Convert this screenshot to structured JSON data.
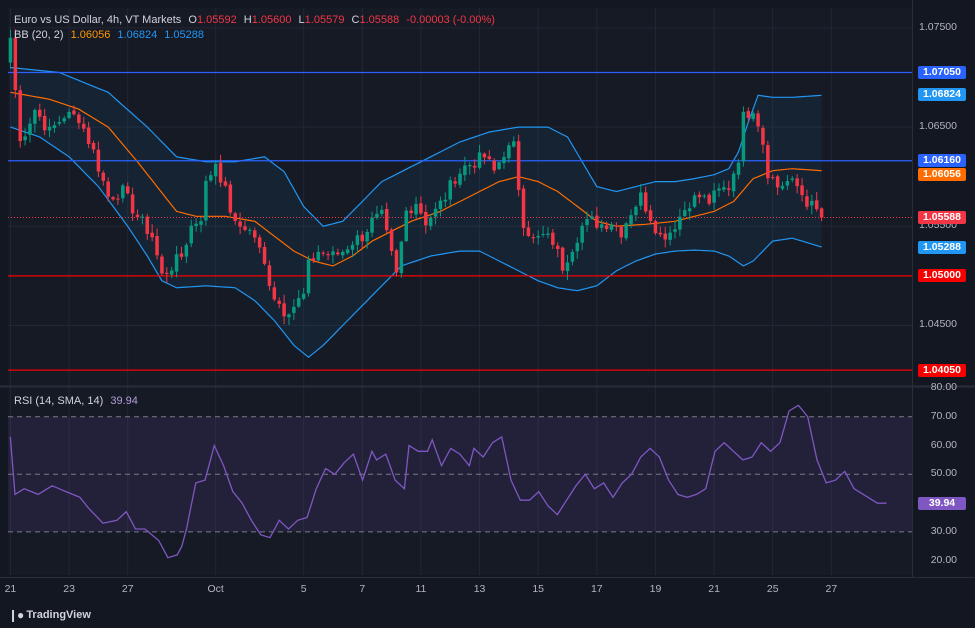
{
  "header": {
    "symbol": "Euro vs US Dollar, 4h, VT Markets",
    "o_label": "O",
    "o": "1.05592",
    "h_label": "H",
    "h": "1.05600",
    "l_label": "L",
    "l": "1.05579",
    "c_label": "C",
    "c": "1.05588",
    "change": "-0.00003 (-0.00%)"
  },
  "bb_legend": {
    "label": "BB (20, 2)",
    "basis": "1.06056",
    "upper": "1.06824",
    "lower": "1.05288"
  },
  "rsi_legend": {
    "label": "RSI (14, SMA, 14)",
    "value": "39.94"
  },
  "price_labels": [
    {
      "text": "1.07050",
      "color": "#2962ff",
      "value": 1.0705
    },
    {
      "text": "1.06824",
      "color": "#2196f3",
      "value": 1.06824
    },
    {
      "text": "1.06160",
      "color": "#2962ff",
      "value": 1.0616
    },
    {
      "text": "1.06056",
      "color": "#ff6d00",
      "value": 1.06056
    },
    {
      "text": "1.05588",
      "color": "#f23645",
      "value": 1.05588
    },
    {
      "text": "1.05288",
      "color": "#2196f3",
      "value": 1.05288
    },
    {
      "text": "1.05000",
      "color": "#f70000",
      "value": 1.05
    },
    {
      "text": "1.04050",
      "color": "#f70000",
      "value": 1.0405
    }
  ],
  "rsi_label": {
    "text": "39.94",
    "color": "#7e57c2"
  },
  "branding": "TradingView",
  "chart_data": {
    "type": "candlestick",
    "price_axis": {
      "ylim": [
        1.039,
        1.077
      ],
      "ticks": [
        "1.07500",
        "1.06500",
        "1.05500",
        "1.04500"
      ],
      "tick_values": [
        1.075,
        1.065,
        1.055,
        1.045
      ]
    },
    "rsi_axis": {
      "ylim": [
        15,
        80
      ],
      "ticks": [
        "80.00",
        "70.00",
        "60.00",
        "50.00",
        "30.00",
        "20.00"
      ],
      "tick_values": [
        80,
        70,
        60,
        50,
        30,
        20
      ],
      "dashed_levels": [
        70,
        50,
        30
      ]
    },
    "date_ticks": [
      {
        "label": "21",
        "bar": 0
      },
      {
        "label": "23",
        "bar": 12
      },
      {
        "label": "27",
        "bar": 24
      },
      {
        "label": "Oct",
        "bar": 42
      },
      {
        "label": "5",
        "bar": 60
      },
      {
        "label": "7",
        "bar": 72
      },
      {
        "label": "11",
        "bar": 84
      },
      {
        "label": "13",
        "bar": 96
      },
      {
        "label": "15",
        "bar": 108
      },
      {
        "label": "17",
        "bar": 120
      },
      {
        "label": "19",
        "bar": 132
      },
      {
        "label": "21",
        "bar": 144
      },
      {
        "label": "25",
        "bar": 156
      },
      {
        "label": "27",
        "bar": 168
      }
    ],
    "horizontal_lines": [
      {
        "value": 1.0705,
        "color": "#2962ff"
      },
      {
        "value": 1.0616,
        "color": "#2962ff"
      },
      {
        "value": 1.05,
        "color": "#f70000"
      },
      {
        "value": 1.0405,
        "color": "#f70000"
      }
    ],
    "last_price": 1.05588,
    "close_anchors": [
      [
        0,
        1.074
      ],
      [
        2,
        1.0635
      ],
      [
        5,
        1.0668
      ],
      [
        8,
        1.0645
      ],
      [
        11,
        1.0662
      ],
      [
        14,
        1.066
      ],
      [
        17,
        1.0625
      ],
      [
        20,
        1.058
      ],
      [
        23,
        1.0585
      ],
      [
        26,
        1.056
      ],
      [
        29,
        1.054
      ],
      [
        31,
        1.05
      ],
      [
        33,
        1.051
      ],
      [
        35,
        1.052
      ],
      [
        37,
        1.055
      ],
      [
        39,
        1.056
      ],
      [
        40,
        1.0592
      ],
      [
        42,
        1.0615
      ],
      [
        44,
        1.0585
      ],
      [
        46,
        1.055
      ],
      [
        48,
        1.055
      ],
      [
        50,
        1.054
      ],
      [
        52,
        1.051
      ],
      [
        54,
        1.048
      ],
      [
        56,
        1.0465
      ],
      [
        58,
        1.047
      ],
      [
        60,
        1.048
      ],
      [
        61,
        1.051
      ],
      [
        63,
        1.0525
      ],
      [
        66,
        1.052
      ],
      [
        68,
        1.0525
      ],
      [
        70,
        1.0535
      ],
      [
        72,
        1.054
      ],
      [
        74,
        1.0555
      ],
      [
        76,
        1.056
      ],
      [
        78,
        1.052
      ],
      [
        79,
        1.05
      ],
      [
        81,
        1.0565
      ],
      [
        83,
        1.0575
      ],
      [
        85,
        1.0555
      ],
      [
        87,
        1.0565
      ],
      [
        89,
        1.058
      ],
      [
        91,
        1.06
      ],
      [
        93,
        1.061
      ],
      [
        95,
        1.0615
      ],
      [
        97,
        1.062
      ],
      [
        99,
        1.0605
      ],
      [
        101,
        1.0625
      ],
      [
        103,
        1.063
      ],
      [
        104,
        1.059
      ],
      [
        105,
        1.0555
      ],
      [
        107,
        1.0535
      ],
      [
        109,
        1.054
      ],
      [
        111,
        1.0535
      ],
      [
        113,
        1.051
      ],
      [
        115,
        1.053
      ],
      [
        117,
        1.055
      ],
      [
        119,
        1.0555
      ],
      [
        121,
        1.0552
      ],
      [
        123,
        1.0555
      ],
      [
        125,
        1.0545
      ],
      [
        127,
        1.0565
      ],
      [
        129,
        1.058
      ],
      [
        131,
        1.056
      ],
      [
        133,
        1.054
      ],
      [
        135,
        1.0545
      ],
      [
        137,
        1.056
      ],
      [
        139,
        1.0575
      ],
      [
        141,
        1.058
      ],
      [
        143,
        1.0575
      ],
      [
        145,
        1.0585
      ],
      [
        147,
        1.059
      ],
      [
        149,
        1.062
      ],
      [
        150,
        1.066
      ],
      [
        152,
        1.067
      ],
      [
        153,
        1.0655
      ],
      [
        154,
        1.0635
      ],
      [
        155,
        1.0605
      ],
      [
        157,
        1.059
      ],
      [
        159,
        1.0595
      ],
      [
        161,
        1.059
      ],
      [
        163,
        1.0575
      ],
      [
        165,
        1.0565
      ],
      [
        166,
        1.05588
      ]
    ],
    "bb_upper_anchors": [
      [
        0,
        1.071
      ],
      [
        10,
        1.0705
      ],
      [
        20,
        1.0685
      ],
      [
        28,
        1.065
      ],
      [
        34,
        1.062
      ],
      [
        40,
        1.0615
      ],
      [
        46,
        1.0615
      ],
      [
        52,
        1.062
      ],
      [
        56,
        1.0605
      ],
      [
        60,
        1.057
      ],
      [
        64,
        1.055
      ],
      [
        68,
        1.0555
      ],
      [
        72,
        1.0575
      ],
      [
        76,
        1.0595
      ],
      [
        80,
        1.0605
      ],
      [
        86,
        1.062
      ],
      [
        92,
        1.0635
      ],
      [
        98,
        1.0645
      ],
      [
        104,
        1.065
      ],
      [
        110,
        1.065
      ],
      [
        114,
        1.064
      ],
      [
        117,
        1.0615
      ],
      [
        120,
        1.059
      ],
      [
        124,
        1.0585
      ],
      [
        128,
        1.059
      ],
      [
        132,
        1.0595
      ],
      [
        136,
        1.0595
      ],
      [
        140,
        1.0598
      ],
      [
        144,
        1.0602
      ],
      [
        147,
        1.0608
      ],
      [
        149,
        1.0625
      ],
      [
        151,
        1.0655
      ],
      [
        153,
        1.0682
      ],
      [
        156,
        1.068
      ],
      [
        160,
        1.068
      ],
      [
        166,
        1.0682
      ]
    ],
    "bb_basis_anchors": [
      [
        0,
        1.0685
      ],
      [
        8,
        1.0678
      ],
      [
        14,
        1.0668
      ],
      [
        20,
        1.065
      ],
      [
        26,
        1.0615
      ],
      [
        30,
        1.059
      ],
      [
        34,
        1.0565
      ],
      [
        38,
        1.056
      ],
      [
        44,
        1.056
      ],
      [
        50,
        1.0555
      ],
      [
        54,
        1.054
      ],
      [
        58,
        1.0525
      ],
      [
        62,
        1.0515
      ],
      [
        66,
        1.051
      ],
      [
        70,
        1.052
      ],
      [
        74,
        1.0535
      ],
      [
        78,
        1.0545
      ],
      [
        82,
        1.0555
      ],
      [
        88,
        1.0565
      ],
      [
        94,
        1.058
      ],
      [
        100,
        1.0595
      ],
      [
        104,
        1.06
      ],
      [
        108,
        1.0595
      ],
      [
        112,
        1.0585
      ],
      [
        116,
        1.057
      ],
      [
        120,
        1.0555
      ],
      [
        124,
        1.055
      ],
      [
        130,
        1.0552
      ],
      [
        136,
        1.0555
      ],
      [
        140,
        1.056
      ],
      [
        144,
        1.0565
      ],
      [
        148,
        1.0575
      ],
      [
        152,
        1.0598
      ],
      [
        156,
        1.0606
      ],
      [
        160,
        1.0608
      ],
      [
        166,
        1.0606
      ]
    ],
    "bb_lower_anchors": [
      [
        0,
        1.065
      ],
      [
        6,
        1.064
      ],
      [
        12,
        1.062
      ],
      [
        18,
        1.059
      ],
      [
        24,
        1.055
      ],
      [
        28,
        1.052
      ],
      [
        31,
        1.0495
      ],
      [
        34,
        1.0488
      ],
      [
        40,
        1.049
      ],
      [
        46,
        1.0488
      ],
      [
        50,
        1.0475
      ],
      [
        54,
        1.0455
      ],
      [
        58,
        1.043
      ],
      [
        61,
        1.0418
      ],
      [
        64,
        1.043
      ],
      [
        68,
        1.045
      ],
      [
        72,
        1.047
      ],
      [
        76,
        1.049
      ],
      [
        80,
        1.051
      ],
      [
        86,
        1.052
      ],
      [
        92,
        1.0525
      ],
      [
        96,
        1.0525
      ],
      [
        100,
        1.0515
      ],
      [
        104,
        1.0505
      ],
      [
        108,
        1.0495
      ],
      [
        112,
        1.0488
      ],
      [
        116,
        1.0485
      ],
      [
        120,
        1.049
      ],
      [
        124,
        1.0505
      ],
      [
        128,
        1.0515
      ],
      [
        132,
        1.0522
      ],
      [
        136,
        1.0525
      ],
      [
        140,
        1.0526
      ],
      [
        144,
        1.0525
      ],
      [
        147,
        1.052
      ],
      [
        150,
        1.051
      ],
      [
        152,
        1.0515
      ],
      [
        156,
        1.0535
      ],
      [
        160,
        1.0538
      ],
      [
        166,
        1.0529
      ]
    ],
    "rsi_anchors": [
      [
        0,
        63
      ],
      [
        1,
        43
      ],
      [
        3,
        45
      ],
      [
        6,
        43
      ],
      [
        9,
        46
      ],
      [
        12,
        44
      ],
      [
        15,
        42
      ],
      [
        17,
        38
      ],
      [
        20,
        33
      ],
      [
        23,
        34
      ],
      [
        25,
        37
      ],
      [
        27,
        31
      ],
      [
        29,
        31
      ],
      [
        32,
        27
      ],
      [
        34,
        21
      ],
      [
        36,
        22
      ],
      [
        37,
        25
      ],
      [
        38,
        31
      ],
      [
        40,
        47
      ],
      [
        42,
        48
      ],
      [
        44,
        60
      ],
      [
        46,
        53
      ],
      [
        48,
        44
      ],
      [
        50,
        40
      ],
      [
        52,
        34
      ],
      [
        54,
        29
      ],
      [
        56,
        28
      ],
      [
        58,
        34
      ],
      [
        60,
        31
      ],
      [
        62,
        34
      ],
      [
        64,
        35
      ],
      [
        66,
        45
      ],
      [
        68,
        52
      ],
      [
        70,
        50
      ],
      [
        72,
        54
      ],
      [
        74,
        57
      ],
      [
        76,
        48
      ],
      [
        78,
        58
      ],
      [
        79,
        55
      ],
      [
        81,
        57
      ],
      [
        83,
        48
      ],
      [
        85,
        45
      ],
      [
        86,
        60
      ],
      [
        88,
        58
      ],
      [
        90,
        58
      ],
      [
        91,
        62
      ],
      [
        93,
        53
      ],
      [
        95,
        59
      ],
      [
        97,
        57
      ],
      [
        99,
        53
      ],
      [
        100,
        59
      ],
      [
        102,
        56
      ],
      [
        104,
        61
      ],
      [
        106,
        63
      ],
      [
        108,
        48
      ],
      [
        110,
        41
      ],
      [
        112,
        41
      ],
      [
        114,
        44
      ],
      [
        116,
        39
      ],
      [
        118,
        36
      ],
      [
        120,
        41
      ],
      [
        122,
        46
      ],
      [
        124,
        50
      ],
      [
        126,
        45
      ],
      [
        128,
        47
      ],
      [
        130,
        42
      ],
      [
        132,
        47
      ],
      [
        134,
        50
      ],
      [
        136,
        56
      ],
      [
        138,
        59
      ],
      [
        140,
        56
      ],
      [
        142,
        48
      ],
      [
        144,
        43
      ],
      [
        146,
        42
      ],
      [
        148,
        43
      ],
      [
        150,
        45
      ],
      [
        152,
        58
      ],
      [
        154,
        61
      ],
      [
        156,
        58
      ],
      [
        158,
        55
      ],
      [
        160,
        56
      ],
      [
        162,
        61
      ],
      [
        164,
        58
      ],
      [
        166,
        61
      ],
      [
        168,
        72
      ],
      [
        170,
        74
      ],
      [
        172,
        70
      ],
      [
        174,
        55
      ],
      [
        176,
        47
      ],
      [
        178,
        48
      ],
      [
        180,
        51
      ],
      [
        182,
        45
      ],
      [
        184,
        43
      ],
      [
        187,
        40
      ],
      [
        189,
        39.94
      ]
    ]
  }
}
